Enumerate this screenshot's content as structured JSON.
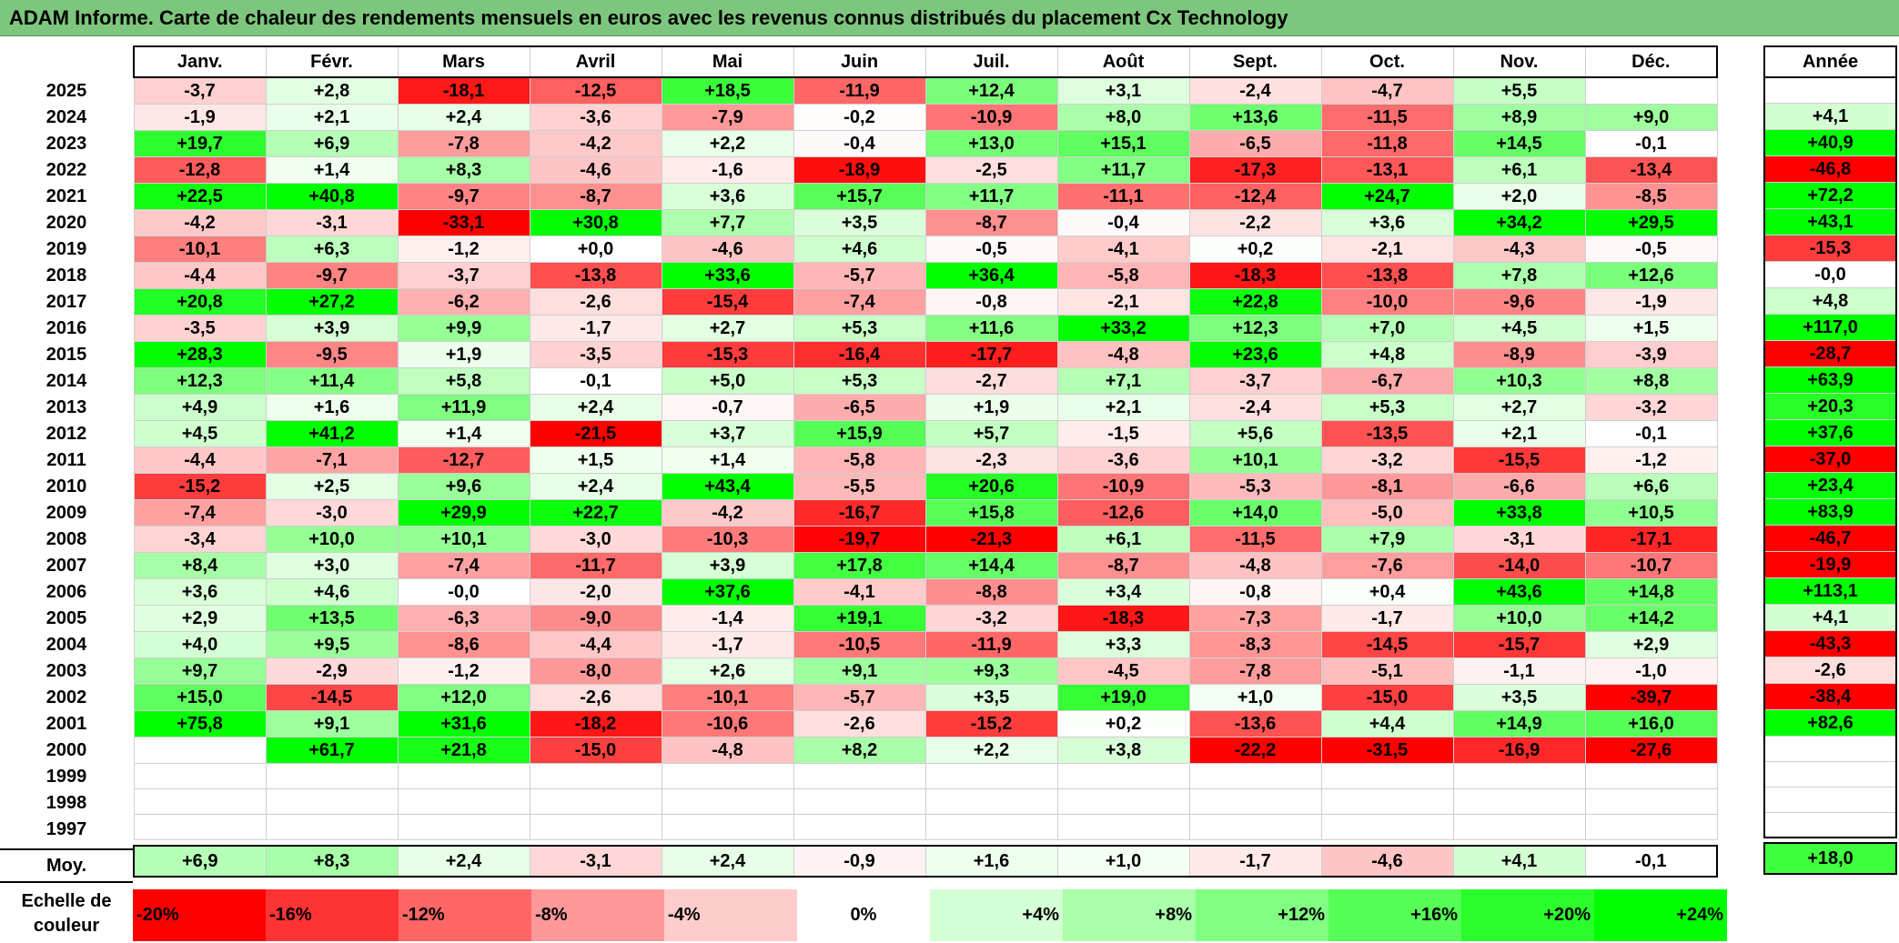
{
  "title": "ADAM Informe. Carte de chaleur des rendements mensuels en euros avec les revenus connus distribués du placement Cx Technology",
  "chart_data": {
    "type": "heatmap",
    "title": "ADAM Informe. Carte de chaleur des rendements mensuels en euros avec les revenus connus distribués du placement Cx Technology",
    "columns": [
      "Janv.",
      "Févr.",
      "Mars",
      "Avril",
      "Mai",
      "Juin",
      "Juil.",
      "Août",
      "Sept.",
      "Oct.",
      "Nov.",
      "Déc."
    ],
    "annual_header": "Année",
    "rows": [
      {
        "year": "2025",
        "values": [
          "-3,7",
          "+2,8",
          "-18,1",
          "-12,5",
          "+18,5",
          "-11,9",
          "+12,4",
          "+3,1",
          "-2,4",
          "-4,7",
          "+5,5",
          ""
        ],
        "annual": ""
      },
      {
        "year": "2024",
        "values": [
          "-1,9",
          "+2,1",
          "+2,4",
          "-3,6",
          "-7,9",
          "-0,2",
          "-10,9",
          "+8,0",
          "+13,6",
          "-11,5",
          "+8,9",
          "+9,0"
        ],
        "annual": "+4,1"
      },
      {
        "year": "2023",
        "values": [
          "+19,7",
          "+6,9",
          "-7,8",
          "-4,2",
          "+2,2",
          "-0,4",
          "+13,0",
          "+15,1",
          "-6,5",
          "-11,8",
          "+14,5",
          "-0,1"
        ],
        "annual": "+40,9"
      },
      {
        "year": "2022",
        "values": [
          "-12,8",
          "+1,4",
          "+8,3",
          "-4,6",
          "-1,6",
          "-18,9",
          "-2,5",
          "+11,7",
          "-17,3",
          "-13,1",
          "+6,1",
          "-13,4"
        ],
        "annual": "-46,8"
      },
      {
        "year": "2021",
        "values": [
          "+22,5",
          "+40,8",
          "-9,7",
          "-8,7",
          "+3,6",
          "+15,7",
          "+11,7",
          "-11,1",
          "-12,4",
          "+24,7",
          "+2,0",
          "-8,5"
        ],
        "annual": "+72,2"
      },
      {
        "year": "2020",
        "values": [
          "-4,2",
          "-3,1",
          "-33,1",
          "+30,8",
          "+7,7",
          "+3,5",
          "-8,7",
          "-0,4",
          "-2,2",
          "+3,6",
          "+34,2",
          "+29,5"
        ],
        "annual": "+43,1"
      },
      {
        "year": "2019",
        "values": [
          "-10,1",
          "+6,3",
          "-1,2",
          "+0,0",
          "-4,6",
          "+4,6",
          "-0,5",
          "-4,1",
          "+0,2",
          "-2,1",
          "-4,3",
          "-0,5"
        ],
        "annual": "-15,3"
      },
      {
        "year": "2018",
        "values": [
          "-4,4",
          "-9,7",
          "-3,7",
          "-13,8",
          "+33,6",
          "-5,7",
          "+36,4",
          "-5,8",
          "-18,3",
          "-13,8",
          "+7,8",
          "+12,6"
        ],
        "annual": "-0,0"
      },
      {
        "year": "2017",
        "values": [
          "+20,8",
          "+27,2",
          "-6,2",
          "-2,6",
          "-15,4",
          "-7,4",
          "-0,8",
          "-2,1",
          "+22,8",
          "-10,0",
          "-9,6",
          "-1,9"
        ],
        "annual": "+4,8"
      },
      {
        "year": "2016",
        "values": [
          "-3,5",
          "+3,9",
          "+9,9",
          "-1,7",
          "+2,7",
          "+5,3",
          "+11,6",
          "+33,2",
          "+12,3",
          "+7,0",
          "+4,5",
          "+1,5"
        ],
        "annual": "+117,0"
      },
      {
        "year": "2015",
        "values": [
          "+28,3",
          "-9,5",
          "+1,9",
          "-3,5",
          "-15,3",
          "-16,4",
          "-17,7",
          "-4,8",
          "+23,6",
          "+4,8",
          "-8,9",
          "-3,9"
        ],
        "annual": "-28,7"
      },
      {
        "year": "2014",
        "values": [
          "+12,3",
          "+11,4",
          "+5,8",
          "-0,1",
          "+5,0",
          "+5,3",
          "-2,7",
          "+7,1",
          "-3,7",
          "-6,7",
          "+10,3",
          "+8,8"
        ],
        "annual": "+63,9"
      },
      {
        "year": "2013",
        "values": [
          "+4,9",
          "+1,6",
          "+11,9",
          "+2,4",
          "-0,7",
          "-6,5",
          "+1,9",
          "+2,1",
          "-2,4",
          "+5,3",
          "+2,7",
          "-3,2"
        ],
        "annual": "+20,3"
      },
      {
        "year": "2012",
        "values": [
          "+4,5",
          "+41,2",
          "+1,4",
          "-21,5",
          "+3,7",
          "+15,9",
          "+5,7",
          "-1,5",
          "+5,6",
          "-13,5",
          "+2,1",
          "-0,1"
        ],
        "annual": "+37,6"
      },
      {
        "year": "2011",
        "values": [
          "-4,4",
          "-7,1",
          "-12,7",
          "+1,5",
          "+1,4",
          "-5,8",
          "-2,3",
          "-3,6",
          "+10,1",
          "-3,2",
          "-15,5",
          "-1,2"
        ],
        "annual": "-37,0"
      },
      {
        "year": "2010",
        "values": [
          "-15,2",
          "+2,5",
          "+9,6",
          "+2,4",
          "+43,4",
          "-5,5",
          "+20,6",
          "-10,9",
          "-5,3",
          "-8,1",
          "-6,6",
          "+6,6"
        ],
        "annual": "+23,4"
      },
      {
        "year": "2009",
        "values": [
          "-7,4",
          "-3,0",
          "+29,9",
          "+22,7",
          "-4,2",
          "-16,7",
          "+15,8",
          "-12,6",
          "+14,0",
          "-5,0",
          "+33,8",
          "+10,5"
        ],
        "annual": "+83,9"
      },
      {
        "year": "2008",
        "values": [
          "-3,4",
          "+10,0",
          "+10,1",
          "-3,0",
          "-10,3",
          "-19,7",
          "-21,3",
          "+6,1",
          "-11,5",
          "+7,9",
          "-3,1",
          "-17,1"
        ],
        "annual": "-46,7"
      },
      {
        "year": "2007",
        "values": [
          "+8,4",
          "+3,0",
          "-7,4",
          "-11,7",
          "+3,9",
          "+17,8",
          "+14,4",
          "-8,7",
          "-4,8",
          "-7,6",
          "-14,0",
          "-10,7"
        ],
        "annual": "-19,9"
      },
      {
        "year": "2006",
        "values": [
          "+3,6",
          "+4,6",
          "-0,0",
          "-2,0",
          "+37,6",
          "-4,1",
          "-8,8",
          "+3,4",
          "-0,8",
          "+0,4",
          "+43,6",
          "+14,8"
        ],
        "annual": "+113,1"
      },
      {
        "year": "2005",
        "values": [
          "+2,9",
          "+13,5",
          "-6,3",
          "-9,0",
          "-1,4",
          "+19,1",
          "-3,2",
          "-18,3",
          "-7,3",
          "-1,7",
          "+10,0",
          "+14,2"
        ],
        "annual": "+4,1"
      },
      {
        "year": "2004",
        "values": [
          "+4,0",
          "+9,5",
          "-8,6",
          "-4,4",
          "-1,7",
          "-10,5",
          "-11,9",
          "+3,3",
          "-8,3",
          "-14,5",
          "-15,7",
          "+2,9"
        ],
        "annual": "-43,3"
      },
      {
        "year": "2003",
        "values": [
          "+9,7",
          "-2,9",
          "-1,2",
          "-8,0",
          "+2,6",
          "+9,1",
          "+9,3",
          "-4,5",
          "-7,8",
          "-5,1",
          "-1,1",
          "-1,0"
        ],
        "annual": "-2,6"
      },
      {
        "year": "2002",
        "values": [
          "+15,0",
          "-14,5",
          "+12,0",
          "-2,6",
          "-10,1",
          "-5,7",
          "+3,5",
          "+19,0",
          "+1,0",
          "-15,0",
          "+3,5",
          "-39,7"
        ],
        "annual": "-38,4"
      },
      {
        "year": "2001",
        "values": [
          "+75,8",
          "+9,1",
          "+31,6",
          "-18,2",
          "-10,6",
          "-2,6",
          "-15,2",
          "+0,2",
          "-13,6",
          "+4,4",
          "+14,9",
          "+16,0"
        ],
        "annual": "+82,6"
      },
      {
        "year": "2000",
        "values": [
          "",
          "+61,7",
          "+21,8",
          "-15,0",
          "-4,8",
          "+8,2",
          "+2,2",
          "+3,8",
          "-22,2",
          "-31,5",
          "-16,9",
          "-27,6"
        ],
        "annual": ""
      },
      {
        "year": "1999",
        "values": [
          "",
          "",
          "",
          "",
          "",
          "",
          "",
          "",
          "",
          "",
          "",
          ""
        ],
        "annual": ""
      },
      {
        "year": "1998",
        "values": [
          "",
          "",
          "",
          "",
          "",
          "",
          "",
          "",
          "",
          "",
          "",
          ""
        ],
        "annual": ""
      },
      {
        "year": "1997",
        "values": [
          "",
          "",
          "",
          "",
          "",
          "",
          "",
          "",
          "",
          "",
          "",
          ""
        ],
        "annual": ""
      }
    ],
    "average": {
      "label": "Moy.",
      "values": [
        "+6,9",
        "+8,3",
        "+2,4",
        "-3,1",
        "+2,4",
        "-0,9",
        "+1,6",
        "+1,0",
        "-1,7",
        "-4,6",
        "+4,1",
        "-0,1"
      ],
      "annual": "+18,0"
    },
    "scale": {
      "label_line1": "Echelle de",
      "label_line2": "couleur",
      "items": [
        {
          "label": "-20%",
          "value": -20
        },
        {
          "label": "-16%",
          "value": -16
        },
        {
          "label": "-12%",
          "value": -12
        },
        {
          "label": "-8%",
          "value": -8
        },
        {
          "label": "-4%",
          "value": -4
        },
        {
          "label": "0%",
          "value": 0
        },
        {
          "label": "+4%",
          "value": 4
        },
        {
          "label": "+8%",
          "value": 8
        },
        {
          "label": "+12%",
          "value": 12
        },
        {
          "label": "+16%",
          "value": 16
        },
        {
          "label": "+20%",
          "value": 20
        },
        {
          "label": "+24%",
          "value": 24
        }
      ]
    },
    "colors": {
      "negative": "#ff0000",
      "neutral": "#ffffff",
      "positive": "#00ff00",
      "title_bg": "#7dc67d"
    }
  }
}
